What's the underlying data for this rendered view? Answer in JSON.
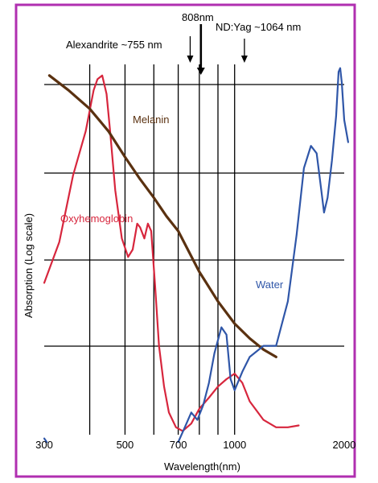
{
  "chart_data": {
    "type": "line",
    "xlabel": "Wavelength(nm)",
    "ylabel": "Absorption (Log scale)",
    "x_scale": "log",
    "y_scale": "log",
    "x_ticks": [
      {
        "value": 300,
        "label": "300"
      },
      {
        "value": 500,
        "label": "500"
      },
      {
        "value": 700,
        "label": "700"
      },
      {
        "value": 1000,
        "label": "1000"
      },
      {
        "value": 2000,
        "label": "2000"
      }
    ],
    "grid": true,
    "series": [
      {
        "name": "Oxyhemoglobin",
        "color": "#d7263d",
        "points": [
          [
            300,
            0.41
          ],
          [
            330,
            0.52
          ],
          [
            360,
            0.7
          ],
          [
            390,
            0.82
          ],
          [
            410,
            0.93
          ],
          [
            420,
            0.96
          ],
          [
            433,
            0.97
          ],
          [
            445,
            0.92
          ],
          [
            455,
            0.82
          ],
          [
            470,
            0.66
          ],
          [
            490,
            0.53
          ],
          [
            510,
            0.48
          ],
          [
            525,
            0.5
          ],
          [
            540,
            0.57
          ],
          [
            550,
            0.56
          ],
          [
            565,
            0.53
          ],
          [
            578,
            0.57
          ],
          [
            590,
            0.55
          ],
          [
            605,
            0.4
          ],
          [
            620,
            0.24
          ],
          [
            640,
            0.13
          ],
          [
            660,
            0.06
          ],
          [
            690,
            0.02
          ],
          [
            720,
            0.01
          ],
          [
            760,
            0.03
          ],
          [
            800,
            0.07
          ],
          [
            850,
            0.1
          ],
          [
            900,
            0.13
          ],
          [
            950,
            0.15
          ],
          [
            1000,
            0.165
          ],
          [
            1050,
            0.14
          ],
          [
            1100,
            0.09
          ],
          [
            1200,
            0.04
          ],
          [
            1300,
            0.02
          ],
          [
            1400,
            0.02
          ],
          [
            1500,
            0.025
          ]
        ]
      },
      {
        "name": "Melanin",
        "color": "#5a3110",
        "points": [
          [
            310,
            0.97
          ],
          [
            350,
            0.93
          ],
          [
            400,
            0.88
          ],
          [
            450,
            0.82
          ],
          [
            500,
            0.75
          ],
          [
            550,
            0.69
          ],
          [
            600,
            0.64
          ],
          [
            650,
            0.59
          ],
          [
            700,
            0.55
          ],
          [
            800,
            0.44
          ],
          [
            900,
            0.36
          ],
          [
            1000,
            0.3
          ],
          [
            1100,
            0.26
          ],
          [
            1200,
            0.23
          ],
          [
            1300,
            0.21
          ]
        ]
      },
      {
        "name": "Water",
        "color": "#2f56a8",
        "points": [
          [
            300,
            -0.01
          ],
          [
            305,
            -0.02
          ],
          [
            700,
            -0.02
          ],
          [
            730,
            0.02
          ],
          [
            760,
            0.06
          ],
          [
            790,
            0.04
          ],
          [
            820,
            0.08
          ],
          [
            850,
            0.14
          ],
          [
            880,
            0.22
          ],
          [
            920,
            0.29
          ],
          [
            950,
            0.27
          ],
          [
            975,
            0.15
          ],
          [
            1000,
            0.12
          ],
          [
            1050,
            0.17
          ],
          [
            1100,
            0.21
          ],
          [
            1200,
            0.24
          ],
          [
            1300,
            0.24
          ],
          [
            1400,
            0.36
          ],
          [
            1480,
            0.54
          ],
          [
            1550,
            0.72
          ],
          [
            1620,
            0.78
          ],
          [
            1680,
            0.76
          ],
          [
            1730,
            0.66
          ],
          [
            1760,
            0.6
          ],
          [
            1800,
            0.64
          ],
          [
            1850,
            0.74
          ],
          [
            1900,
            0.86
          ],
          [
            1930,
            0.98
          ],
          [
            1950,
            0.99
          ],
          [
            1970,
            0.95
          ],
          [
            2000,
            0.85
          ],
          [
            2050,
            0.79
          ]
        ]
      }
    ],
    "annotations": [
      {
        "label": "808nm",
        "x": 808,
        "bold_arrow": true
      },
      {
        "label": "Alexandrite ~755 nm",
        "x": 755,
        "bold_arrow": false
      },
      {
        "label": "ND:Yag ~1064 nm",
        "x": 1064,
        "bold_arrow": false
      }
    ],
    "series_labels": {
      "Melanin": "Melanin",
      "Oxyhemoglobin": "Oxyhemoglobin",
      "Water": "Water"
    }
  },
  "colors": {
    "frame": "#b02fb0",
    "grid": "#000000"
  }
}
